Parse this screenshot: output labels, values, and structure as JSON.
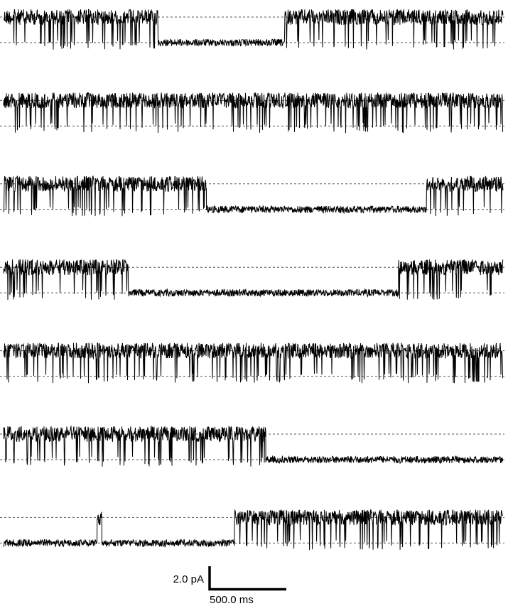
{
  "chart_data": {
    "type": "line",
    "title": "",
    "xlabel": "",
    "ylabel": "",
    "duration_ms": 3200,
    "levels_pA": {
      "closed": 0,
      "open": 2.2
    },
    "grid": false,
    "trace_color": "#000000",
    "level_line_color": "#555555",
    "scale_bar": {
      "current_label": "2.0 pA",
      "current_pA": 2.0,
      "time_label": "500.0 ms",
      "time_ms": 500
    },
    "traces": [
      {
        "segments": [
          {
            "state": "open",
            "start_ms": 0,
            "end_ms": 990
          },
          {
            "state": "closed",
            "start_ms": 990,
            "end_ms": 1800
          },
          {
            "state": "open",
            "start_ms": 1800,
            "end_ms": 3200
          }
        ]
      },
      {
        "segments": [
          {
            "state": "open",
            "start_ms": 0,
            "end_ms": 3200
          }
        ]
      },
      {
        "segments": [
          {
            "state": "open",
            "start_ms": 0,
            "end_ms": 1300
          },
          {
            "state": "closed",
            "start_ms": 1300,
            "end_ms": 2710
          },
          {
            "state": "open",
            "start_ms": 2710,
            "end_ms": 3200
          }
        ]
      },
      {
        "segments": [
          {
            "state": "open",
            "start_ms": 0,
            "end_ms": 800
          },
          {
            "state": "closed",
            "start_ms": 800,
            "end_ms": 2530
          },
          {
            "state": "open",
            "start_ms": 2530,
            "end_ms": 3200
          }
        ]
      },
      {
        "segments": [
          {
            "state": "open",
            "start_ms": 0,
            "end_ms": 3200
          }
        ]
      },
      {
        "segments": [
          {
            "state": "open",
            "start_ms": 0,
            "end_ms": 1680
          },
          {
            "state": "closed",
            "start_ms": 1680,
            "end_ms": 3200
          }
        ]
      },
      {
        "segments": [
          {
            "state": "closed",
            "start_ms": 0,
            "end_ms": 600
          },
          {
            "state": "open",
            "start_ms": 600,
            "end_ms": 630
          },
          {
            "state": "closed",
            "start_ms": 630,
            "end_ms": 1480
          },
          {
            "state": "open",
            "start_ms": 1480,
            "end_ms": 3200
          }
        ]
      }
    ]
  }
}
